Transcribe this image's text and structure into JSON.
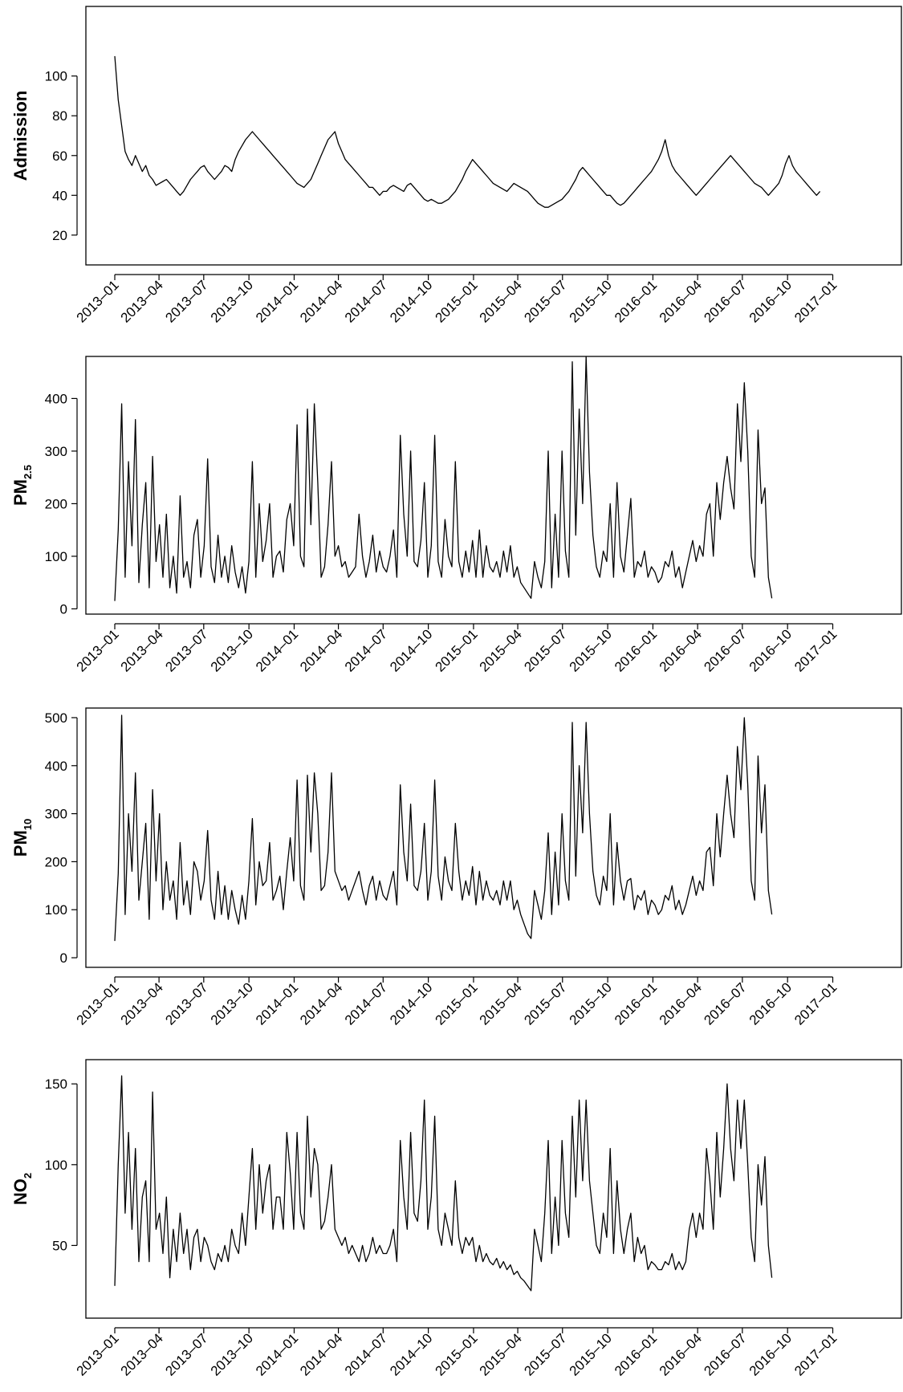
{
  "chart_data": [
    {
      "type": "line",
      "ylabel": "Admission",
      "ylabel_sub": "",
      "ylim": [
        5,
        135
      ],
      "yticks": [
        20,
        40,
        60,
        80,
        100
      ],
      "x_start": "2013-01-01",
      "x_end": "2017-03-31",
      "x_ticks": [
        "2013-01",
        "2013-04",
        "2013-07",
        "2013-10",
        "2014-01",
        "2014-04",
        "2014-07",
        "2014-10",
        "2015-01",
        "2015-04",
        "2015-07",
        "2015-10",
        "2016-01",
        "2016-04",
        "2016-07",
        "2016-10",
        "2017-01"
      ],
      "series": [
        {
          "sample_interval_days": 7,
          "y": [
            110,
            88,
            75,
            62,
            58,
            55,
            60,
            56,
            52,
            55,
            50,
            48,
            45,
            46,
            47,
            48,
            46,
            44,
            42,
            40,
            42,
            45,
            48,
            50,
            52,
            54,
            55,
            52,
            50,
            48,
            50,
            52,
            55,
            54,
            52,
            58,
            62,
            65,
            68,
            70,
            72,
            70,
            68,
            66,
            64,
            62,
            60,
            58,
            56,
            54,
            52,
            50,
            48,
            46,
            45,
            44,
            46,
            48,
            52,
            56,
            60,
            64,
            68,
            70,
            72,
            66,
            62,
            58,
            56,
            54,
            52,
            50,
            48,
            46,
            44,
            44,
            42,
            40,
            42,
            42,
            44,
            45,
            44,
            43,
            42,
            45,
            46,
            44,
            42,
            40,
            38,
            37,
            38,
            37,
            36,
            36,
            37,
            38,
            40,
            42,
            45,
            48,
            52,
            55,
            58,
            56,
            54,
            52,
            50,
            48,
            46,
            45,
            44,
            43,
            42,
            44,
            46,
            45,
            44,
            43,
            42,
            40,
            38,
            36,
            35,
            34,
            34,
            35,
            36,
            37,
            38,
            40,
            42,
            45,
            48,
            52,
            54,
            52,
            50,
            48,
            46,
            44,
            42,
            40,
            40,
            38,
            36,
            35,
            36,
            38,
            40,
            42,
            44,
            46,
            48,
            50,
            52,
            55,
            58,
            62,
            68,
            60,
            55,
            52,
            50,
            48,
            46,
            44,
            42,
            40,
            42,
            44,
            46,
            48,
            50,
            52,
            54,
            56,
            58,
            60,
            58,
            56,
            54,
            52,
            50,
            48,
            46,
            45,
            44,
            42,
            40,
            42,
            44,
            46,
            50,
            56,
            60,
            55,
            52,
            50,
            48,
            46,
            44,
            42,
            40,
            42
          ]
        }
      ]
    },
    {
      "type": "line",
      "ylabel": "PM",
      "ylabel_sub": "2.5",
      "ylim": [
        -10,
        480
      ],
      "yticks": [
        0,
        100,
        200,
        300,
        400
      ],
      "x_start": "2013-01-01",
      "x_end": "2017-03-31",
      "x_ticks": [
        "2013-01",
        "2013-04",
        "2013-07",
        "2013-10",
        "2014-01",
        "2014-04",
        "2014-07",
        "2014-10",
        "2015-01",
        "2015-04",
        "2015-07",
        "2015-10",
        "2016-01",
        "2016-04",
        "2016-07",
        "2016-10",
        "2017-01"
      ],
      "series": [
        {
          "sample_interval_days": 7,
          "y": [
            15,
            150,
            390,
            60,
            280,
            120,
            360,
            50,
            160,
            240,
            40,
            290,
            90,
            160,
            60,
            180,
            40,
            100,
            30,
            215,
            60,
            90,
            40,
            140,
            170,
            60,
            120,
            285,
            80,
            50,
            140,
            60,
            100,
            50,
            120,
            70,
            40,
            80,
            30,
            90,
            280,
            60,
            200,
            90,
            130,
            200,
            60,
            100,
            110,
            70,
            170,
            200,
            120,
            350,
            100,
            80,
            380,
            160,
            390,
            240,
            60,
            80,
            160,
            280,
            100,
            120,
            80,
            90,
            60,
            70,
            80,
            180,
            100,
            60,
            90,
            140,
            70,
            110,
            80,
            70,
            100,
            150,
            60,
            330,
            180,
            100,
            300,
            90,
            80,
            130,
            240,
            60,
            120,
            330,
            90,
            60,
            170,
            100,
            80,
            280,
            90,
            60,
            110,
            70,
            130,
            60,
            150,
            60,
            120,
            80,
            70,
            90,
            60,
            110,
            70,
            120,
            60,
            80,
            50,
            40,
            30,
            20,
            90,
            60,
            40,
            90,
            300,
            40,
            180,
            60,
            300,
            110,
            60,
            470,
            140,
            380,
            200,
            480,
            260,
            140,
            80,
            60,
            110,
            90,
            200,
            60,
            240,
            100,
            70,
            140,
            210,
            60,
            90,
            80,
            110,
            60,
            80,
            70,
            50,
            60,
            90,
            80,
            110,
            60,
            80,
            40,
            70,
            100,
            130,
            90,
            120,
            100,
            180,
            200,
            100,
            240,
            170,
            240,
            290,
            230,
            190,
            390,
            280,
            430,
            300,
            100,
            60,
            340,
            200,
            230,
            60,
            20
          ]
        }
      ]
    },
    {
      "type": "line",
      "ylabel": "PM",
      "ylabel_sub": "10",
      "ylim": [
        -20,
        520
      ],
      "yticks": [
        0,
        100,
        200,
        300,
        400,
        500
      ],
      "x_start": "2013-01-01",
      "x_end": "2017-03-31",
      "x_ticks": [
        "2013-01",
        "2013-04",
        "2013-07",
        "2013-10",
        "2014-01",
        "2014-04",
        "2014-07",
        "2014-10",
        "2015-01",
        "2015-04",
        "2015-07",
        "2015-10",
        "2016-01",
        "2016-04",
        "2016-07",
        "2016-10",
        "2017-01"
      ],
      "series": [
        {
          "sample_interval_days": 7,
          "y": [
            35,
            175,
            505,
            90,
            300,
            180,
            385,
            120,
            200,
            280,
            80,
            350,
            160,
            300,
            100,
            200,
            120,
            160,
            80,
            240,
            110,
            160,
            90,
            200,
            180,
            120,
            160,
            265,
            120,
            80,
            180,
            90,
            150,
            80,
            140,
            100,
            70,
            130,
            80,
            160,
            290,
            110,
            200,
            150,
            160,
            240,
            120,
            140,
            170,
            100,
            180,
            250,
            160,
            370,
            150,
            120,
            380,
            220,
            385,
            300,
            140,
            150,
            220,
            385,
            180,
            160,
            140,
            150,
            120,
            140,
            160,
            180,
            140,
            110,
            150,
            170,
            120,
            160,
            130,
            120,
            150,
            180,
            110,
            360,
            220,
            160,
            320,
            150,
            140,
            180,
            280,
            120,
            180,
            370,
            170,
            120,
            210,
            160,
            140,
            280,
            180,
            120,
            160,
            130,
            190,
            110,
            180,
            120,
            160,
            130,
            120,
            140,
            110,
            160,
            120,
            160,
            100,
            120,
            90,
            70,
            50,
            40,
            140,
            110,
            80,
            140,
            260,
            90,
            220,
            110,
            300,
            160,
            120,
            490,
            170,
            400,
            260,
            490,
            300,
            180,
            130,
            110,
            170,
            140,
            300,
            110,
            240,
            160,
            120,
            160,
            165,
            100,
            130,
            120,
            140,
            90,
            120,
            110,
            90,
            100,
            130,
            120,
            150,
            100,
            120,
            90,
            110,
            140,
            170,
            130,
            160,
            140,
            220,
            230,
            150,
            300,
            210,
            300,
            380,
            300,
            250,
            440,
            350,
            500,
            360,
            160,
            120,
            420,
            260,
            360,
            140,
            90
          ]
        }
      ]
    },
    {
      "type": "line",
      "ylabel": "NO",
      "ylabel_sub": "2",
      "ylim": [
        5,
        165
      ],
      "yticks": [
        50,
        100,
        150
      ],
      "x_start": "2013-01-01",
      "x_end": "2017-03-31",
      "x_ticks": [
        "2013-01",
        "2013-04",
        "2013-07",
        "2013-10",
        "2014-01",
        "2014-04",
        "2014-07",
        "2014-10",
        "2015-01",
        "2015-04",
        "2015-07",
        "2015-10",
        "2016-01",
        "2016-04",
        "2016-07",
        "2016-10",
        "2017-01"
      ],
      "series": [
        {
          "sample_interval_days": 7,
          "y": [
            25,
            100,
            155,
            70,
            120,
            60,
            110,
            40,
            80,
            90,
            40,
            145,
            60,
            70,
            45,
            80,
            30,
            60,
            40,
            70,
            45,
            60,
            35,
            55,
            60,
            40,
            55,
            50,
            40,
            35,
            45,
            40,
            50,
            40,
            60,
            50,
            45,
            70,
            50,
            80,
            110,
            60,
            100,
            70,
            90,
            100,
            60,
            80,
            80,
            60,
            120,
            95,
            60,
            120,
            70,
            60,
            130,
            80,
            110,
            100,
            60,
            65,
            80,
            100,
            60,
            55,
            50,
            55,
            45,
            50,
            45,
            40,
            50,
            40,
            45,
            55,
            45,
            50,
            45,
            45,
            50,
            60,
            40,
            115,
            80,
            60,
            120,
            70,
            65,
            90,
            140,
            60,
            80,
            130,
            60,
            50,
            70,
            60,
            50,
            90,
            55,
            45,
            55,
            50,
            55,
            40,
            50,
            40,
            45,
            40,
            38,
            42,
            36,
            40,
            35,
            38,
            32,
            34,
            30,
            28,
            25,
            22,
            60,
            50,
            40,
            70,
            115,
            45,
            80,
            50,
            115,
            70,
            55,
            130,
            80,
            140,
            90,
            140,
            90,
            70,
            50,
            45,
            70,
            55,
            110,
            45,
            90,
            60,
            45,
            60,
            70,
            40,
            55,
            45,
            50,
            35,
            40,
            38,
            35,
            35,
            40,
            38,
            45,
            35,
            40,
            35,
            40,
            60,
            70,
            55,
            70,
            60,
            110,
            90,
            60,
            120,
            80,
            110,
            150,
            110,
            90,
            140,
            110,
            140,
            100,
            55,
            40,
            100,
            75,
            105,
            50,
            30
          ]
        }
      ]
    }
  ]
}
